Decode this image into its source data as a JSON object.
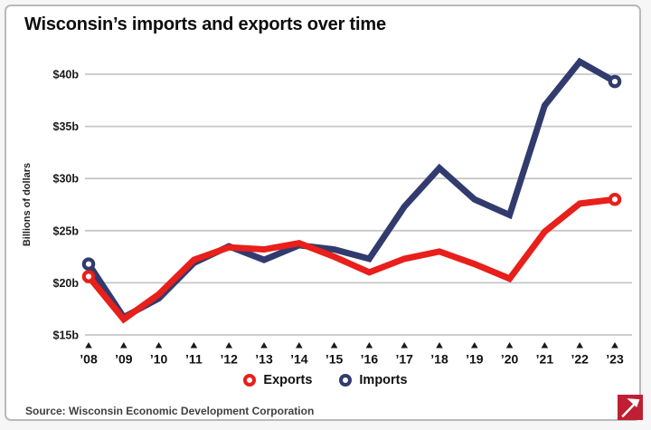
{
  "chart_data": {
    "type": "line",
    "title": "Wisconsin’s imports and exports over time",
    "ylabel": "Billions of dollars",
    "xlabel": "",
    "categories": [
      "’08",
      "’09",
      "’10",
      "’11",
      "’12",
      "’13",
      "’14",
      "’15",
      "’16",
      "’17",
      "’18",
      "’19",
      "’20",
      "’21",
      "’22",
      "’23"
    ],
    "series": [
      {
        "name": "Exports",
        "color": "#e81f1a",
        "values": [
          20.6,
          16.5,
          18.9,
          22.2,
          23.4,
          23.2,
          23.8,
          22.5,
          21.0,
          22.3,
          23.0,
          21.8,
          20.4,
          24.9,
          27.6,
          28.0
        ]
      },
      {
        "name": "Imports",
        "color": "#313b6e",
        "values": [
          21.8,
          16.7,
          18.5,
          21.9,
          23.5,
          22.2,
          23.6,
          23.2,
          22.3,
          27.3,
          31.0,
          28.0,
          26.5,
          37.0,
          41.2,
          39.3
        ]
      }
    ],
    "y_ticks": [
      {
        "value": 15,
        "label": "$15b"
      },
      {
        "value": 20,
        "label": "$20b"
      },
      {
        "value": 25,
        "label": "$25b"
      },
      {
        "value": 30,
        "label": "$30b"
      },
      {
        "value": 35,
        "label": "$35b"
      },
      {
        "value": 40,
        "label": "$40b"
      }
    ],
    "ylim": [
      15,
      42.5
    ],
    "grid": "horizontal",
    "grid_color": "#c7c7c7",
    "axis_text_color": "#1a1a1a",
    "legend_position": "bottom",
    "marker_style": "open circles at first and last points"
  },
  "footer": {
    "source": "Source: Wisconsin Economic Development Corporation"
  },
  "logo": {
    "color": "#bf1e33"
  }
}
